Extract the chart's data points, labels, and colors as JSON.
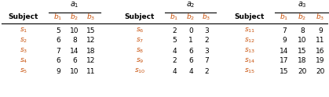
{
  "a1_b1": [
    5,
    6,
    7,
    6,
    9
  ],
  "a1_b2": [
    10,
    8,
    14,
    6,
    10
  ],
  "a1_b3": [
    15,
    12,
    18,
    12,
    11
  ],
  "a2_b1": [
    2,
    5,
    4,
    2,
    4
  ],
  "a2_b2": [
    0,
    1,
    6,
    6,
    4
  ],
  "a2_b3": [
    3,
    2,
    3,
    7,
    2
  ],
  "a3_b1": [
    7,
    9,
    14,
    17,
    15
  ],
  "a3_b2": [
    8,
    10,
    15,
    18,
    20
  ],
  "a3_b3": [
    9,
    11,
    16,
    19,
    20
  ],
  "orange_color": "#c8500a",
  "black_color": "#000000",
  "bg_color": "#ffffff",
  "fs_a": 7.0,
  "fs_header": 6.5,
  "fs_data": 6.5
}
